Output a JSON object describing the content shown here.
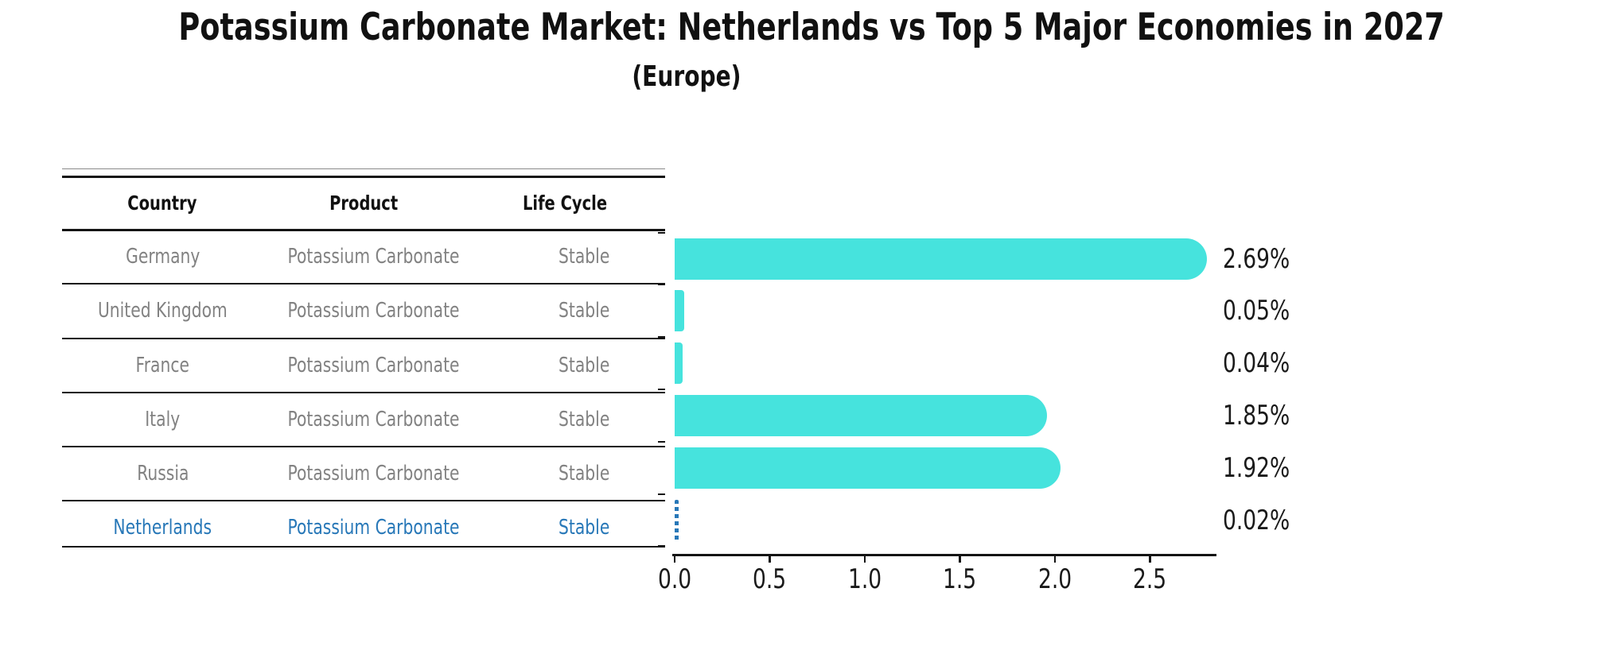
{
  "title": "Potassium Carbonate Market: Netherlands vs Top 5 Major Economies in 2027",
  "subtitle": "(Europe)",
  "table": {
    "headers": [
      "Country",
      "Product",
      "Life Cycle"
    ],
    "rows": [
      {
        "country": "Germany",
        "product": "Potassium Carbonate",
        "life_cycle": "Stable"
      },
      {
        "country": "United Kingdom",
        "product": "Potassium Carbonate",
        "life_cycle": "Stable"
      },
      {
        "country": "France",
        "product": "Potassium Carbonate",
        "life_cycle": "Stable"
      },
      {
        "country": "Italy",
        "product": "Potassium Carbonate",
        "life_cycle": "Stable"
      },
      {
        "country": "Russia",
        "product": "Potassium Carbonate",
        "life_cycle": "Stable"
      },
      {
        "country": "Netherlands",
        "product": "Potassium Carbonate",
        "life_cycle": "Stable"
      }
    ],
    "highlighted_row": "Netherlands"
  },
  "chart_data": {
    "type": "bar",
    "orientation": "horizontal",
    "categories": [
      "Germany",
      "United Kingdom",
      "France",
      "Italy",
      "Russia",
      "Netherlands"
    ],
    "values": [
      2.69,
      0.05,
      0.04,
      1.85,
      1.92,
      0.02
    ],
    "value_labels": [
      "2.69%",
      "0.05%",
      "0.04%",
      "1.85%",
      "1.92%",
      "0.02%"
    ],
    "title": "Potassium Carbonate Market: Netherlands vs Top 5 Major Economies in 2027 (Europe)",
    "xlabel": "",
    "ylabel": "",
    "xlim": [
      0,
      2.85
    ],
    "xticks": [
      0,
      0.5,
      1,
      1.5,
      2,
      2.5
    ],
    "xtick_labels": [
      "0.0",
      "0.5",
      "1.0",
      "1.5",
      "2.0",
      "2.5"
    ],
    "grid": false,
    "legend": false,
    "bar_color": "#46E3DD",
    "highlight_index": 5,
    "highlight_color": "#2878B8",
    "highlight_style": "dashed-outline"
  },
  "colors": {
    "bar": "#46E3DD",
    "highlight": "#2878B8",
    "muted_text": "#828282",
    "line": "#141414"
  }
}
